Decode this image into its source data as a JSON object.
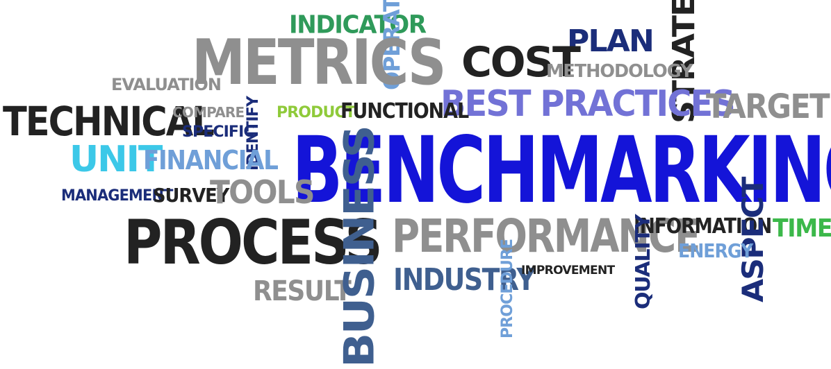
{
  "colors": {
    "dark": "#222222",
    "gray": "#8f8f8f",
    "blue": "#1414d8",
    "navy": "#1b2d7a",
    "lavender": "#7272d6",
    "sky": "#6f9fd8",
    "cyan": "#3cc8e8",
    "green": "#2f9a5a",
    "lime": "#8fca3a",
    "steel": "#3f5f8f"
  },
  "words": {
    "indicator": "INDICATOR",
    "operational": "OPERATIONAL",
    "strategic": "STRATEGIC",
    "plan": "PLAN",
    "metrics": "METRICS",
    "cost": "COST",
    "methodology": "METHODOLOGY",
    "evaluation": "EVALUATION",
    "best_practices": "BEST PRACTICES",
    "target": "TARGET",
    "technical": "TECHNICAL",
    "compare": "COMPARE",
    "product": "PRODUCT",
    "functional": "FUNCTIONAL",
    "specific": "SPECIFIC",
    "identify": "IDENTIFY",
    "benchmarking": "BENCHMARKING",
    "unit": "UNIT",
    "financial": "FINANCIAL",
    "management": "MANAGEMENT",
    "survey": "SURVEY",
    "tools": "TOOLS",
    "process": "PROCESS",
    "business": "BUSINESS",
    "performance": "PERFORMANCE",
    "information": "INFORMATION",
    "time": "TIME",
    "aspect": "ASPECT",
    "energy": "ENERGY",
    "quality": "QUALITY",
    "industry": "INDUSTRY",
    "procedure": "PROCEDURE",
    "improvement": "IMPROVEMENT",
    "result": "RESULT"
  }
}
